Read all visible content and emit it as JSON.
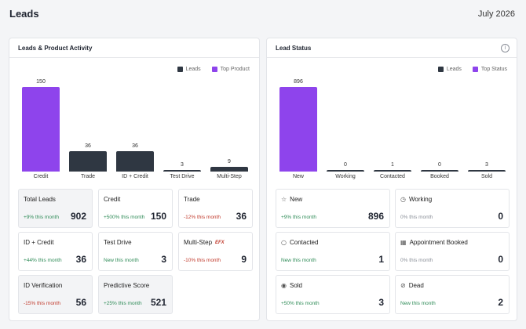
{
  "header": {
    "title": "Leads",
    "date": "July 2026"
  },
  "colors": {
    "leads": "#2f3742",
    "top": "#8e44ec"
  },
  "left_panel": {
    "title": "Leads & Product Activity",
    "legend": {
      "leads": "Leads",
      "top": "Top Product"
    },
    "tiles": [
      {
        "label": "Total Leads",
        "sub": "+9% this month",
        "value": "902",
        "tone": "pos"
      },
      {
        "label": "Credit",
        "sub": "+500% this month",
        "value": "150",
        "tone": "pos"
      },
      {
        "label": "Trade",
        "sub": "-12% this month",
        "value": "36",
        "tone": "neg"
      },
      {
        "label": "ID + Credit",
        "sub": "+44% this month",
        "value": "36",
        "tone": "pos"
      },
      {
        "label": "Test Drive",
        "sub": "New this month",
        "value": "3",
        "tone": "pos"
      },
      {
        "label": "Multi-Step",
        "badge": "EFX",
        "sub": "-10% this month",
        "value": "9",
        "tone": "neg"
      },
      {
        "label": "ID Verification",
        "sub": "-15% this month",
        "value": "56",
        "tone": "neg"
      },
      {
        "label": "Predictive Score",
        "sub": "+25% this month",
        "value": "521",
        "tone": "pos"
      }
    ]
  },
  "right_panel": {
    "title": "Lead Status",
    "info_icon": "info-icon",
    "legend": {
      "leads": "Leads",
      "top": "Top Status"
    },
    "tiles": [
      {
        "icon": "star-icon",
        "label": "New",
        "sub": "+9% this month",
        "value": "896",
        "tone": "pos"
      },
      {
        "icon": "clock-icon",
        "label": "Working",
        "sub": "0% this month",
        "value": "0",
        "tone": "neu"
      },
      {
        "icon": "chat-icon",
        "label": "Contacted",
        "sub": "New this month",
        "value": "1",
        "tone": "pos"
      },
      {
        "icon": "calendar-icon",
        "label": "Appointment Booked",
        "sub": "0% this month",
        "value": "0",
        "tone": "neu"
      },
      {
        "icon": "check-circle-icon",
        "label": "Sold",
        "sub": "+50% this month",
        "value": "3",
        "tone": "pos"
      },
      {
        "icon": "ban-icon",
        "label": "Dead",
        "sub": "New this month",
        "value": "2",
        "tone": "pos"
      }
    ]
  },
  "chart_data": [
    {
      "type": "bar",
      "title": "",
      "categories": [
        "Credit",
        "Trade",
        "ID + Credit",
        "Test Drive",
        "Multi-Step"
      ],
      "values": [
        150,
        36,
        36,
        3,
        9
      ],
      "highlight_index": 0,
      "ylim": [
        0,
        150
      ],
      "grid": false,
      "legend_position": "top-right"
    },
    {
      "type": "bar",
      "title": "",
      "categories": [
        "New",
        "Working",
        "Contacted",
        "Booked",
        "Sold"
      ],
      "values": [
        896,
        0,
        1,
        0,
        3
      ],
      "highlight_index": 0,
      "ylim": [
        0,
        896
      ],
      "grid": false,
      "legend_position": "top-right"
    }
  ]
}
